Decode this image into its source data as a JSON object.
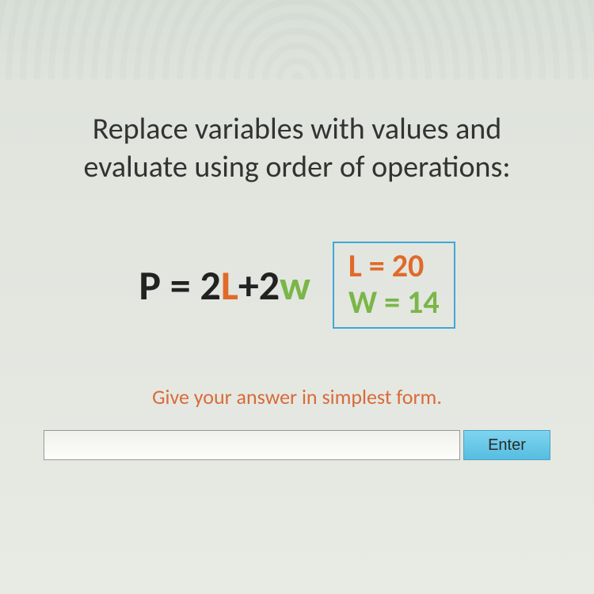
{
  "instruction": {
    "line1": "Replace variables with values and",
    "line2": "evaluate using order of operations:"
  },
  "formula": {
    "lhs": "P",
    "eq": " = ",
    "c1": "2",
    "v1": "L",
    "plus": "+",
    "c2": "2",
    "v2": "w"
  },
  "values": {
    "L_label": "L = 20",
    "W_label": "W = 14"
  },
  "hint": "Give your answer in simplest form.",
  "input": {
    "value": "",
    "placeholder": ""
  },
  "enter_label": "Enter",
  "colors": {
    "L_color": "#e06a2a",
    "w_color": "#7ab648",
    "box_border": "#3fa8d8",
    "hint_color": "#d96a3a",
    "btn_bg_top": "#7fd4ef",
    "btn_bg_bottom": "#56bde0"
  }
}
